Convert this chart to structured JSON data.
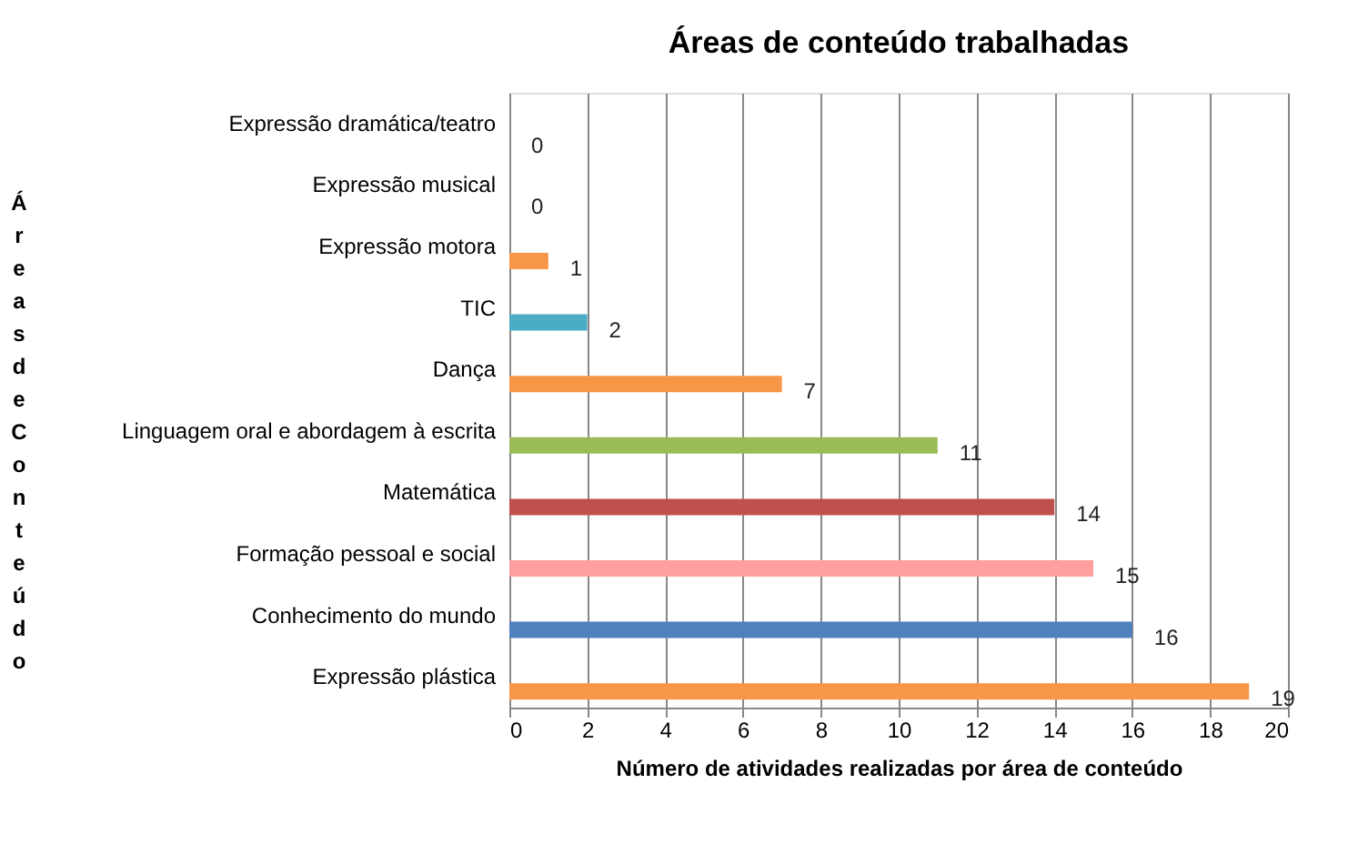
{
  "chart_data": {
    "type": "bar",
    "orientation": "horizontal",
    "title": "Áreas de conteúdo trabalhadas",
    "xlabel": "Número de atividades realizadas por área de conteúdo",
    "ylabel": "Áreas de Conteúdo",
    "categories": [
      "Expressão dramática/teatro",
      "Expressão musical",
      "Expressão motora",
      "TIC",
      "Dança",
      "Linguagem oral e abordagem à escrita",
      "Matemática",
      "Formação pessoal e social",
      "Conhecimento do mundo",
      "Expressão plástica"
    ],
    "values": [
      0,
      0,
      1,
      2,
      7,
      11,
      14,
      15,
      16,
      19
    ],
    "colors": [
      "#f79646",
      "#f79646",
      "#f79646",
      "#4bacc6",
      "#f79646",
      "#9bbb59",
      "#c0504d",
      "#ff9f9f",
      "#4f81bd",
      "#f79646"
    ],
    "xlim": [
      0,
      20
    ],
    "xticks": [
      0,
      2,
      4,
      6,
      8,
      10,
      12,
      14,
      16,
      18,
      20
    ],
    "grid": "x",
    "data_labels": true
  }
}
